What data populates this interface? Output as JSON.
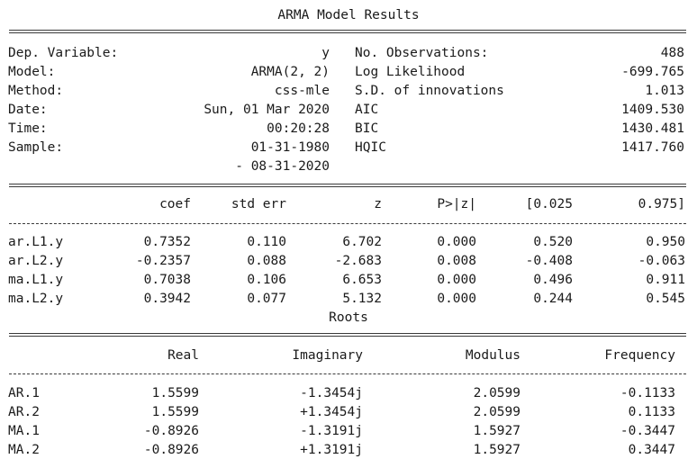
{
  "title": "ARMA Model Results",
  "info_left": [
    {
      "label": "Dep. Variable:",
      "value": "y"
    },
    {
      "label": "Model:",
      "value": "ARMA(2, 2)"
    },
    {
      "label": "Method:",
      "value": "css-mle"
    },
    {
      "label": "Date:",
      "value": "Sun, 01 Mar 2020"
    },
    {
      "label": "Time:",
      "value": "00:20:28"
    },
    {
      "label": "Sample:",
      "value": "01-31-1980"
    }
  ],
  "sample_end": "- 08-31-2020",
  "info_right": [
    {
      "label": "No. Observations:",
      "value": "488"
    },
    {
      "label": "Log Likelihood",
      "value": "-699.765"
    },
    {
      "label": "S.D. of innovations",
      "value": "1.013"
    },
    {
      "label": "AIC",
      "value": "1409.530"
    },
    {
      "label": "BIC",
      "value": "1430.481"
    },
    {
      "label": "HQIC",
      "value": "1417.760"
    }
  ],
  "coef_table": {
    "headers": [
      "coef",
      "std err",
      "z",
      "P>|z|",
      "[0.025",
      "0.975]"
    ],
    "rows": [
      {
        "name": "ar.L1.y",
        "cells": [
          "0.7352",
          "0.110",
          "6.702",
          "0.000",
          "0.520",
          "0.950"
        ]
      },
      {
        "name": "ar.L2.y",
        "cells": [
          "-0.2357",
          "0.088",
          "-2.683",
          "0.008",
          "-0.408",
          "-0.063"
        ]
      },
      {
        "name": "ma.L1.y",
        "cells": [
          "0.7038",
          "0.106",
          "6.653",
          "0.000",
          "0.496",
          "0.911"
        ]
      },
      {
        "name": "ma.L2.y",
        "cells": [
          "0.3942",
          "0.077",
          "5.132",
          "0.000",
          "0.244",
          "0.545"
        ]
      }
    ]
  },
  "roots_title": "Roots",
  "roots_table": {
    "headers": [
      "Real",
      "Imaginary",
      "Modulus",
      "Frequency"
    ],
    "rows": [
      {
        "name": "AR.1",
        "cells": [
          "1.5599",
          "-1.3454j",
          "2.0599",
          "-0.1133"
        ]
      },
      {
        "name": "AR.2",
        "cells": [
          "1.5599",
          "+1.3454j",
          "2.0599",
          "0.1133"
        ]
      },
      {
        "name": "MA.1",
        "cells": [
          "-0.8926",
          "-1.3191j",
          "1.5927",
          "-0.3447"
        ]
      },
      {
        "name": "MA.2",
        "cells": [
          "-0.8926",
          "+1.3191j",
          "1.5927",
          "0.3447"
        ]
      }
    ]
  }
}
